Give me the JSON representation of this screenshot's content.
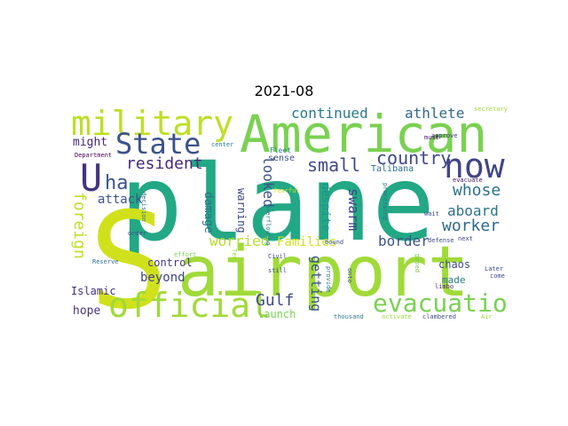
{
  "title": "2021-08",
  "words": [
    {
      "text": "plane",
      "color": "#22a884"
    },
    {
      "text": "S",
      "color": "#d0e11c"
    },
    {
      "text": "airport",
      "color": "#a0da39"
    },
    {
      "text": "American",
      "color": "#7ad151"
    },
    {
      "text": "military",
      "color": "#bddf26"
    },
    {
      "text": "official",
      "color": "#a0da39"
    },
    {
      "text": "now",
      "color": "#414487"
    },
    {
      "text": "State",
      "color": "#3b528b"
    },
    {
      "text": "U",
      "color": "#46327e"
    },
    {
      "text": "ha",
      "color": "#3b528b"
    },
    {
      "text": "evacuation",
      "color": "#7ad151"
    },
    {
      "text": "resident",
      "color": "#482878"
    },
    {
      "text": "small",
      "color": "#3e4989"
    },
    {
      "text": "country",
      "color": "#3e4989"
    },
    {
      "text": "continued",
      "color": "#2a788e"
    },
    {
      "text": "athlete",
      "color": "#31688e"
    },
    {
      "text": "whose",
      "color": "#2c728e"
    },
    {
      "text": "worker",
      "color": "#31688e"
    },
    {
      "text": "aboard",
      "color": "#2c728e"
    },
    {
      "text": "foreign",
      "color": "#bddf26"
    },
    {
      "text": "might",
      "color": "#482878"
    },
    {
      "text": "attack",
      "color": "#3b528b"
    },
    {
      "text": "worried",
      "color": "#b5de2b"
    },
    {
      "text": "Families",
      "color": "#d0e11c"
    },
    {
      "text": "border",
      "color": "#3b528b"
    },
    {
      "text": "Gulf",
      "color": "#3e4989"
    },
    {
      "text": "getting",
      "color": "#3b528b"
    },
    {
      "text": "swarm",
      "color": "#414487"
    },
    {
      "text": "despite",
      "color": "#21918c"
    },
    {
      "text": "looked",
      "color": "#3b528b"
    },
    {
      "text": "damage",
      "color": "#2c728e"
    },
    {
      "text": "warning",
      "color": "#3e4989"
    },
    {
      "text": "beyond",
      "color": "#414487"
    },
    {
      "text": "control",
      "color": "#443983"
    },
    {
      "text": "Islamic",
      "color": "#46327e"
    },
    {
      "text": "hope",
      "color": "#46327e"
    },
    {
      "text": "launch",
      "color": "#7ad151"
    },
    {
      "text": "chaos",
      "color": "#3e4989"
    },
    {
      "text": "made",
      "color": "#2a788e"
    },
    {
      "text": "sense",
      "color": "#3b528b"
    },
    {
      "text": "Talibana",
      "color": "#2c728e"
    },
    {
      "text": "Fleet",
      "color": "#2a788e"
    },
    {
      "text": "Department",
      "color": "#440154"
    },
    {
      "text": "center",
      "color": "#2a788e"
    },
    {
      "text": "approve",
      "color": "#443983"
    },
    {
      "text": "secretary",
      "color": "#a0da39"
    },
    {
      "text": "must",
      "color": "#481467"
    },
    {
      "text": "evacuate",
      "color": "#481467"
    },
    {
      "text": "decision",
      "color": "#2a788e"
    },
    {
      "text": "order",
      "color": "#3e4989"
    },
    {
      "text": "effort",
      "color": "#7ad151"
    },
    {
      "text": "Reserve",
      "color": "#2c728e"
    },
    {
      "text": "Tens",
      "color": "#a0da39"
    },
    {
      "text": "Civil",
      "color": "#3e4989"
    },
    {
      "text": "still",
      "color": "#3e4989"
    },
    {
      "text": "provide",
      "color": "#2a788e"
    },
    {
      "text": "onto",
      "color": "#3b528b"
    },
    {
      "text": "fearful",
      "color": "#d0e11c"
    },
    {
      "text": "overflowing",
      "color": "#2a788e"
    },
    {
      "text": "processing",
      "color": "#2c728e"
    },
    {
      "text": "posed",
      "color": "#7ad151"
    },
    {
      "text": "defense",
      "color": "#3e4989"
    },
    {
      "text": "bound",
      "color": "#3b528b"
    },
    {
      "text": "wait",
      "color": "#3e4989"
    },
    {
      "text": "next",
      "color": "#3e4989"
    },
    {
      "text": "Later",
      "color": "#3e4989"
    },
    {
      "text": "come",
      "color": "#3e4989"
    },
    {
      "text": "limbo",
      "color": "#482878"
    },
    {
      "text": "thousand",
      "color": "#2a788e"
    },
    {
      "text": "activate",
      "color": "#a0da39"
    },
    {
      "text": "clambered",
      "color": "#3e4989"
    },
    {
      "text": "Air",
      "color": "#a0da39"
    }
  ]
}
